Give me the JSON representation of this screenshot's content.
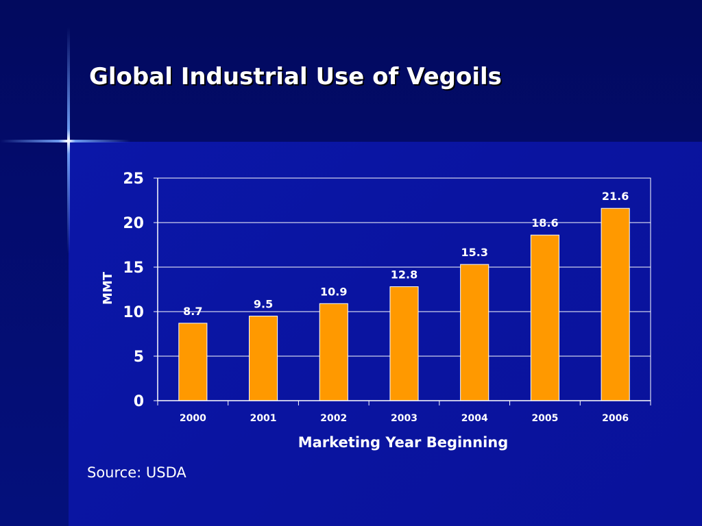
{
  "title": "Global Industrial Use of Vegoils",
  "source": "Source: USDA",
  "colors": {
    "bar": "#ff9900",
    "bar_edge": "#ffffff",
    "grid": "#ffffff",
    "text": "#ffffff"
  },
  "chart_data": {
    "type": "bar",
    "categories": [
      "2000",
      "2001",
      "2002",
      "2003",
      "2004",
      "2005",
      "2006"
    ],
    "values": [
      8.7,
      9.5,
      10.9,
      12.8,
      15.3,
      18.6,
      21.6
    ],
    "data_labels": [
      "8.7",
      "9.5",
      "10.9",
      "12.8",
      "15.3",
      "18.6",
      "21.6"
    ],
    "title": "",
    "xlabel": "Marketing Year Beginning",
    "ylabel": "MMT",
    "ylim": [
      0,
      25
    ],
    "yticks": [
      0,
      5,
      10,
      15,
      20,
      25
    ],
    "grid": true,
    "legend": "none"
  }
}
